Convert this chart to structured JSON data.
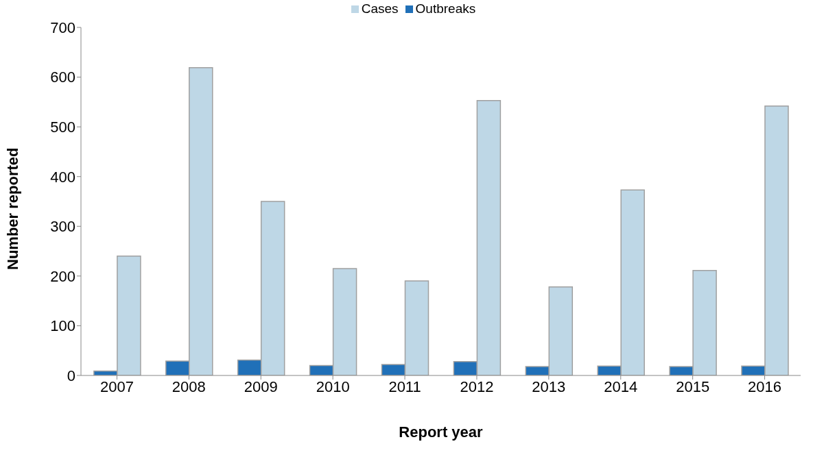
{
  "chart_data": {
    "type": "bar",
    "xlabel": "Report year",
    "ylabel": "Number reported",
    "categories": [
      "2007",
      "2008",
      "2009",
      "2010",
      "2011",
      "2012",
      "2013",
      "2014",
      "2015",
      "2016"
    ],
    "series": [
      {
        "name": "Outbreaks",
        "color": "#2070b8",
        "values": [
          9,
          29,
          31,
          20,
          22,
          28,
          18,
          19,
          18,
          19
        ]
      },
      {
        "name": "Cases",
        "color": "#bed7e6",
        "values": [
          240,
          619,
          350,
          215,
          190,
          553,
          178,
          373,
          211,
          542
        ]
      }
    ],
    "ylim": [
      0,
      700
    ],
    "yticks": [
      0,
      100,
      200,
      300,
      400,
      500,
      600,
      700
    ],
    "grid": false,
    "legend": "top"
  }
}
